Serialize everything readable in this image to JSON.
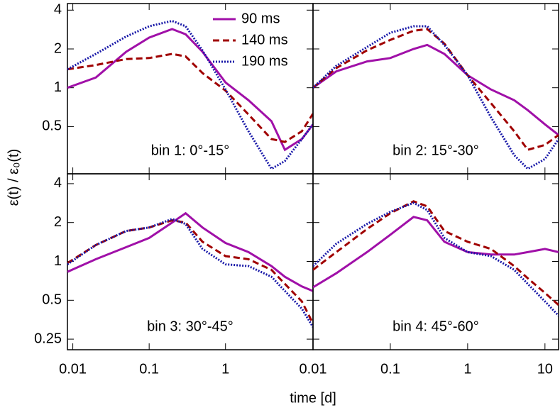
{
  "y_label": "ε(t) / ε₀(t)",
  "x_label": "time [d]",
  "legend": [
    {
      "name": "90 ms",
      "color": "#a010a8",
      "dash": "solid"
    },
    {
      "name": "140 ms",
      "color": "#a00000",
      "dash": "dashed"
    },
    {
      "name": "190 ms",
      "color": "#1818a8",
      "dash": "dotted"
    }
  ],
  "chart_data": [
    {
      "type": "line",
      "annotation": "bin 1: 0°-15°",
      "log_x": true,
      "log_y": true,
      "xlim": [
        0.0085,
        14
      ],
      "xticks": [
        0.01,
        0.1,
        1
      ],
      "ylim": [
        0.215,
        4.5
      ],
      "yticks": [
        0.5,
        1,
        2,
        4
      ],
      "x": [
        0.0085,
        0.02,
        0.05,
        0.1,
        0.2,
        0.3,
        0.5,
        1,
        2,
        4,
        6,
        10,
        14
      ],
      "series": [
        {
          "values": [
            1.0,
            1.2,
            1.9,
            2.45,
            2.85,
            2.6,
            1.9,
            1.1,
            0.8,
            0.55,
            0.33,
            0.4,
            0.52
          ]
        },
        {
          "values": [
            1.39,
            1.5,
            1.67,
            1.7,
            1.83,
            1.75,
            1.3,
            0.95,
            0.62,
            0.4,
            0.38,
            0.46,
            0.63
          ]
        },
        {
          "values": [
            1.39,
            1.83,
            2.5,
            3.0,
            3.3,
            3.0,
            1.95,
            0.97,
            0.46,
            0.235,
            0.27,
            0.4,
            0.52
          ]
        }
      ]
    },
    {
      "type": "line",
      "annotation": "bin 2: 15°-30°",
      "log_x": true,
      "log_y": true,
      "xlim": [
        0.01,
        15
      ],
      "xticks": [
        0.01,
        0.1,
        1,
        10
      ],
      "ylim": [
        0.215,
        4.5
      ],
      "yticks": [
        0.5,
        1,
        2,
        4
      ],
      "x": [
        0.01,
        0.02,
        0.05,
        0.1,
        0.2,
        0.3,
        0.5,
        1,
        2,
        4,
        6,
        10,
        15
      ],
      "series": [
        {
          "values": [
            1.0,
            1.34,
            1.6,
            1.7,
            2.0,
            2.15,
            1.83,
            1.25,
            0.97,
            0.8,
            0.67,
            0.52,
            0.43
          ]
        },
        {
          "values": [
            1.0,
            1.42,
            1.95,
            2.35,
            2.77,
            2.85,
            2.2,
            1.25,
            0.76,
            0.46,
            0.33,
            0.36,
            0.43
          ]
        },
        {
          "values": [
            1.0,
            1.48,
            2.07,
            2.67,
            3.0,
            3.0,
            2.15,
            1.25,
            0.59,
            0.3,
            0.235,
            0.28,
            0.4
          ]
        }
      ]
    },
    {
      "type": "line",
      "annotation": "bin 3: 30°-45°",
      "log_x": true,
      "log_y": true,
      "xlim": [
        0.0085,
        14
      ],
      "xticks": [
        0.01,
        0.1,
        1
      ],
      "ylim": [
        0.207,
        4.77
      ],
      "yticks": [
        0.25,
        0.5,
        1,
        2,
        4
      ],
      "x": [
        0.0085,
        0.02,
        0.05,
        0.1,
        0.2,
        0.3,
        0.5,
        1,
        2,
        4,
        6,
        10,
        14
      ],
      "series": [
        {
          "values": [
            0.83,
            1.04,
            1.29,
            1.52,
            2.0,
            2.36,
            1.83,
            1.39,
            1.18,
            0.92,
            0.76,
            0.64,
            0.59
          ]
        },
        {
          "values": [
            0.97,
            1.34,
            1.72,
            1.83,
            2.08,
            2.0,
            1.42,
            1.1,
            1.04,
            0.86,
            0.67,
            0.49,
            0.33
          ]
        },
        {
          "values": [
            0.95,
            1.34,
            1.72,
            1.83,
            2.13,
            1.95,
            1.25,
            0.95,
            0.92,
            0.76,
            0.59,
            0.43,
            0.31
          ]
        }
      ]
    },
    {
      "type": "line",
      "annotation": "bin 4: 45°-60°",
      "log_x": true,
      "log_y": true,
      "xlim": [
        0.01,
        15
      ],
      "xticks": [
        0.01,
        0.1,
        1,
        10
      ],
      "ylim": [
        0.207,
        4.77
      ],
      "yticks": [
        0.25,
        0.5,
        1,
        2,
        4
      ],
      "x": [
        0.01,
        0.02,
        0.05,
        0.1,
        0.2,
        0.3,
        0.5,
        1,
        2,
        4,
        6,
        10,
        15
      ],
      "series": [
        {
          "values": [
            0.63,
            0.81,
            1.18,
            1.61,
            2.21,
            2.08,
            1.42,
            1.18,
            1.13,
            1.13,
            1.18,
            1.25,
            1.18
          ]
        },
        {
          "values": [
            0.86,
            1.18,
            1.78,
            2.36,
            2.92,
            2.67,
            1.72,
            1.42,
            1.25,
            0.92,
            0.74,
            0.57,
            0.46
          ]
        },
        {
          "values": [
            0.92,
            1.37,
            1.95,
            2.42,
            2.84,
            2.5,
            1.52,
            1.18,
            1.1,
            0.86,
            0.67,
            0.49,
            0.38
          ]
        }
      ]
    }
  ]
}
